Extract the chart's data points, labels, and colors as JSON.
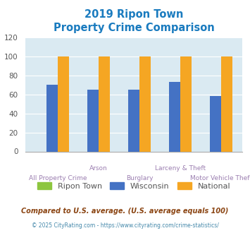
{
  "title_line1": "2019 Ripon Town",
  "title_line2": "Property Crime Comparison",
  "ripon_town": [
    0,
    0,
    0,
    0,
    0
  ],
  "wisconsin": [
    70,
    65,
    65,
    73,
    58
  ],
  "national": [
    100,
    100,
    100,
    100,
    100
  ],
  "bar_color_ripon": "#8dc63f",
  "bar_color_wisconsin": "#4472c4",
  "bar_color_national": "#f5a623",
  "ylim": [
    0,
    120
  ],
  "yticks": [
    0,
    20,
    40,
    60,
    80,
    100,
    120
  ],
  "bg_color": "#daeaf2",
  "title_color": "#1a7bbf",
  "xlabel_top_labels": [
    "",
    "Arson",
    "",
    "Larceny & Theft",
    ""
  ],
  "xlabel_bot_labels": [
    "All Property Crime",
    "",
    "Burglary",
    "",
    "Motor Vehicle Theft"
  ],
  "xlabel_color": "#9b7eb0",
  "footnote1": "Compared to U.S. average. (U.S. average equals 100)",
  "footnote2": "© 2025 CityRating.com - https://www.cityrating.com/crime-statistics/",
  "footnote1_color": "#8b4513",
  "footnote2_color": "#4488aa",
  "legend_labels": [
    "Ripon Town",
    "Wisconsin",
    "National"
  ],
  "legend_label_color": "#555555"
}
